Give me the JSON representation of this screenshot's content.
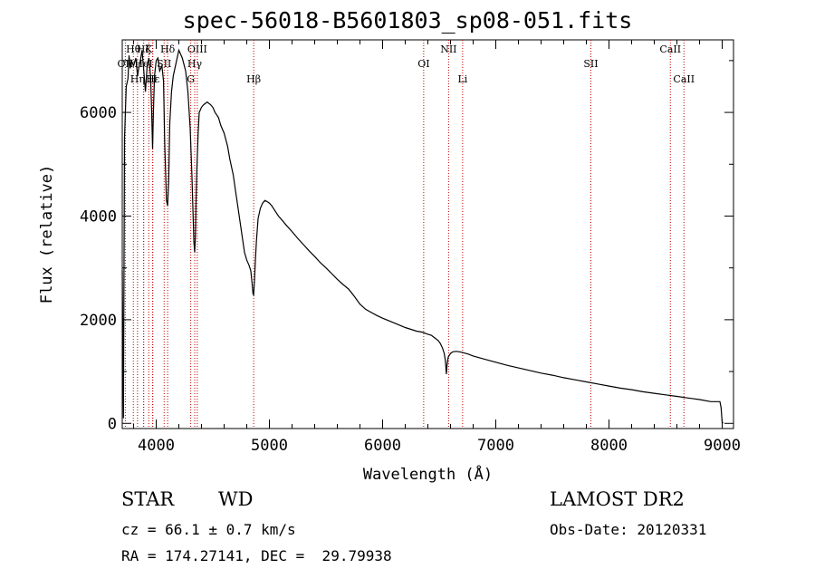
{
  "chart_data": {
    "type": "line",
    "title": "spec-56018-B5601803_sp08-051.fits",
    "xlabel": "Wavelength (Å)",
    "ylabel": "Flux (relative)",
    "xlim": [
      3700,
      9100
    ],
    "ylim": [
      -100,
      7400
    ],
    "x_ticks": [
      4000,
      5000,
      6000,
      7000,
      8000,
      9000
    ],
    "y_ticks": [
      0,
      2000,
      4000,
      6000
    ],
    "grid": false,
    "series": [
      {
        "x": [
          3700,
          3710,
          3720,
          3735,
          3750,
          3760,
          3770,
          3780,
          3800,
          3820,
          3835,
          3845,
          3860,
          3875,
          3890,
          3905,
          3920,
          3935,
          3950,
          3960,
          3968,
          3975,
          3985,
          4000,
          4015,
          4030,
          4050,
          4065,
          4075,
          4090,
          4101,
          4110,
          4120,
          4135,
          4150,
          4180,
          4200,
          4230,
          4260,
          4280,
          4300,
          4315,
          4325,
          4333,
          4340,
          4346,
          4352,
          4360,
          4370,
          4380,
          4400,
          4420,
          4450,
          4480,
          4500,
          4520,
          4550,
          4570,
          4600,
          4630,
          4650,
          4680,
          4700,
          4720,
          4740,
          4760,
          4780,
          4800,
          4820,
          4835,
          4845,
          4855,
          4861,
          4868,
          4875,
          4885,
          4900,
          4920,
          4940,
          4960,
          4980,
          5000,
          5020,
          5050,
          5080,
          5100,
          5150,
          5200,
          5250,
          5300,
          5350,
          5400,
          5450,
          5500,
          5550,
          5600,
          5650,
          5700,
          5750,
          5800,
          5850,
          5900,
          5950,
          6000,
          6100,
          6200,
          6300,
          6350,
          6400,
          6430,
          6460,
          6490,
          6510,
          6530,
          6545,
          6555,
          6563,
          6570,
          6580,
          6600,
          6620,
          6650,
          6680,
          6700,
          6750,
          6800,
          6900,
          7000,
          7100,
          7200,
          7300,
          7400,
          7500,
          7600,
          7700,
          7800,
          7900,
          8000,
          8100,
          8200,
          8300,
          8400,
          8500,
          8600,
          8700,
          8800,
          8900,
          8980,
          8990,
          9000,
          9010
        ],
        "y": [
          2950,
          100,
          5500,
          6500,
          6650,
          7100,
          6850,
          7000,
          6900,
          7050,
          6700,
          6850,
          7000,
          7200,
          6800,
          6400,
          6900,
          7050,
          6700,
          6000,
          5300,
          6000,
          6700,
          7000,
          7050,
          6800,
          6900,
          6600,
          5400,
          4300,
          4200,
          4700,
          5800,
          6400,
          6700,
          7000,
          7200,
          7050,
          6800,
          6400,
          5700,
          4800,
          4100,
          3500,
          3300,
          3600,
          4300,
          4950,
          5600,
          6000,
          6100,
          6150,
          6200,
          6150,
          6100,
          6000,
          5900,
          5750,
          5600,
          5350,
          5100,
          4800,
          4500,
          4200,
          3900,
          3600,
          3300,
          3150,
          3050,
          2950,
          2750,
          2500,
          2480,
          2750,
          3100,
          3500,
          3950,
          4150,
          4250,
          4300,
          4280,
          4250,
          4200,
          4100,
          4000,
          3950,
          3820,
          3700,
          3570,
          3450,
          3330,
          3220,
          3100,
          3000,
          2890,
          2780,
          2680,
          2590,
          2450,
          2300,
          2200,
          2140,
          2080,
          2030,
          1940,
          1850,
          1780,
          1760,
          1720,
          1700,
          1650,
          1600,
          1540,
          1450,
          1350,
          1200,
          950,
          1150,
          1280,
          1350,
          1380,
          1390,
          1380,
          1370,
          1340,
          1300,
          1240,
          1180,
          1120,
          1070,
          1020,
          970,
          930,
          880,
          840,
          800,
          760,
          720,
          680,
          650,
          610,
          580,
          550,
          520,
          490,
          460,
          420,
          420,
          300,
          10,
          10
        ]
      }
    ],
    "annotations": [
      {
        "label": "OII",
        "x": 3727
      },
      {
        "label": "Hθ",
        "x": 3798
      },
      {
        "label": "Hη",
        "x": 3835
      },
      {
        "label": "Hζ",
        "x": 3889
      },
      {
        "label": "HeI",
        "x": 3889
      },
      {
        "label": "SII",
        "x": 4070
      },
      {
        "label": "K",
        "x": 3934
      },
      {
        "label": "H",
        "x": 3968
      },
      {
        "label": "Hε",
        "x": 3970
      },
      {
        "label": "Hδ",
        "x": 4101
      },
      {
        "label": "G",
        "x": 4305
      },
      {
        "label": "Hγ",
        "x": 4340
      },
      {
        "label": "OIII",
        "x": 4363
      },
      {
        "label": "Hβ",
        "x": 4861
      },
      {
        "label": "OI",
        "x": 6363
      },
      {
        "label": "NII",
        "x": 6583
      },
      {
        "label": "Li",
        "x": 6707
      },
      {
        "label": "SII",
        "x": 7840
      },
      {
        "label": "CaII",
        "x": 8542
      },
      {
        "label": "CaII",
        "x": 8662
      }
    ]
  },
  "info": {
    "class": "STAR",
    "subclass": "WD",
    "survey": "LAMOST DR2",
    "cz": "cz = 66.1 ± 0.7 km/s",
    "obs_date": "Obs-Date: 20120331",
    "coords": "RA = 174.27141, DEC =  29.79938"
  }
}
